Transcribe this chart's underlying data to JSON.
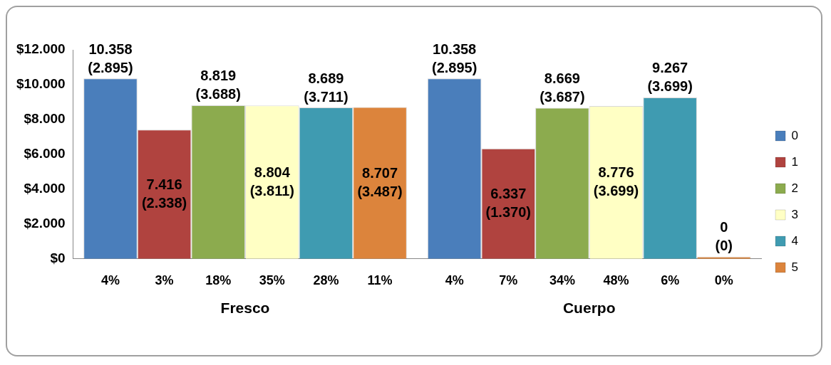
{
  "chart_data": {
    "type": "bar",
    "categories": [
      "Fresco",
      "Cuerpo"
    ],
    "series": [
      {
        "name": "0",
        "color": "#4a7ebb",
        "values": [
          10358,
          10358
        ],
        "value_labels": [
          "10.358 (2.895)",
          "10.358 (2.895)"
        ]
      },
      {
        "name": "1",
        "color": "#b0433f",
        "values": [
          7416,
          6337
        ],
        "value_labels": [
          "7.416 (2.338)",
          "6.337 (1.370)"
        ]
      },
      {
        "name": "2",
        "color": "#8cab4e",
        "values": [
          8819,
          8669
        ],
        "value_labels": [
          "8.819 (3.688)",
          "8.669 (3.687)"
        ]
      },
      {
        "name": "3",
        "color": "#ffffc4",
        "values": [
          8804,
          8776
        ],
        "value_labels": [
          "8.804 (3.811)",
          "8.776 (3.699)"
        ]
      },
      {
        "name": "4",
        "color": "#3f9bb1",
        "values": [
          8689,
          9267
        ],
        "value_labels": [
          "8.689 (3.711)",
          "9.267 (3.699)"
        ]
      },
      {
        "name": "5",
        "color": "#dc843c",
        "values": [
          8707,
          0
        ],
        "value_labels": [
          "8.707 (3.487)",
          "0 (0)"
        ]
      }
    ],
    "annotations": [
      "4%",
      "3%",
      "18%",
      "35%",
      "28%",
      "11%",
      "4%",
      "7%",
      "34%",
      "48%",
      "6%",
      "0%"
    ],
    "ylim": [
      0,
      12000
    ],
    "yticks": [
      {
        "value": 0,
        "label": "$0"
      },
      {
        "value": 2000,
        "label": "$2.000"
      },
      {
        "value": 4000,
        "label": "$4.000"
      },
      {
        "value": 6000,
        "label": "$6.000"
      },
      {
        "value": 8000,
        "label": "$8.000"
      },
      {
        "value": 10000,
        "label": "$10.000"
      },
      {
        "value": 12000,
        "label": "$12.000"
      }
    ],
    "grid": false,
    "legend": "right"
  }
}
